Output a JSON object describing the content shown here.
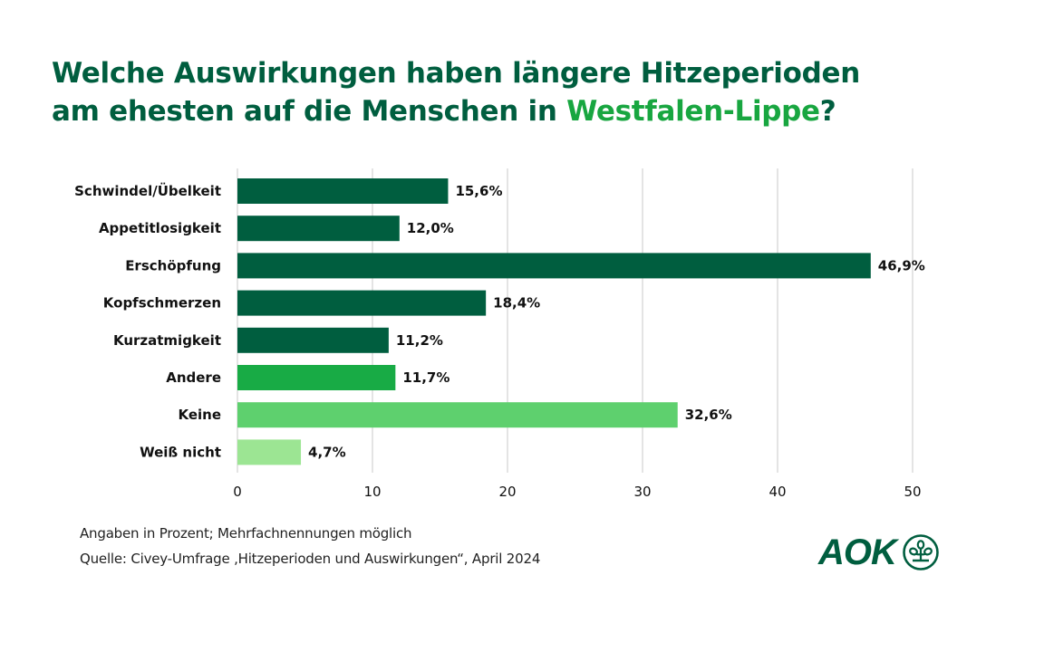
{
  "title": {
    "line1": "Welche Auswirkungen haben längere Hitzeperioden",
    "line2_prefix": "am ehesten auf die Menschen in ",
    "line2_highlight": "Westfalen-Lippe",
    "line2_suffix": "?"
  },
  "colors": {
    "title": "#005e3f",
    "title_highlight": "#18a640",
    "dark_green": "#005e3f",
    "medium_green": "#18ab45",
    "light_green": "#5ed06e",
    "pale_green": "#9ce593",
    "grid": "#c8c8c8"
  },
  "chart_data": {
    "type": "bar",
    "orientation": "horizontal",
    "title": "Welche Auswirkungen haben längere Hitzeperioden am ehesten auf die Menschen in Westfalen-Lippe?",
    "xlabel": "",
    "ylabel": "",
    "xlim": [
      0,
      50
    ],
    "xticks": [
      0,
      10,
      20,
      30,
      40,
      50
    ],
    "xtick_labels": [
      "0",
      "10",
      "20",
      "30",
      "40",
      "50"
    ],
    "grid": "vertical",
    "legend": "none",
    "categories": [
      "Schwindel/Übelkeit",
      "Appetitlosigkeit",
      "Erschöpfung",
      "Kopfschmerzen",
      "Kurzatmigkeit",
      "Andere",
      "Keine",
      "Weiß nicht"
    ],
    "values": [
      15.6,
      12.0,
      46.9,
      18.4,
      11.2,
      11.7,
      32.6,
      4.7
    ],
    "value_labels": [
      "15,6%",
      "12,0%",
      "46,9%",
      "18,4%",
      "11,2%",
      "11,7%",
      "32,6%",
      "4,7%"
    ],
    "bar_colors": [
      "#005e3f",
      "#005e3f",
      "#005e3f",
      "#005e3f",
      "#005e3f",
      "#18ab45",
      "#5ed06e",
      "#9ce593"
    ],
    "unit": "%"
  },
  "footnotes": {
    "note": "Angaben in Prozent; Mehrfachnennungen möglich",
    "source": "Quelle: Civey-Umfrage ‚Hitzeperioden und Auswirkungen“, April 2024"
  },
  "logo": {
    "text": "AOK",
    "icon": "aok-tree-icon"
  }
}
